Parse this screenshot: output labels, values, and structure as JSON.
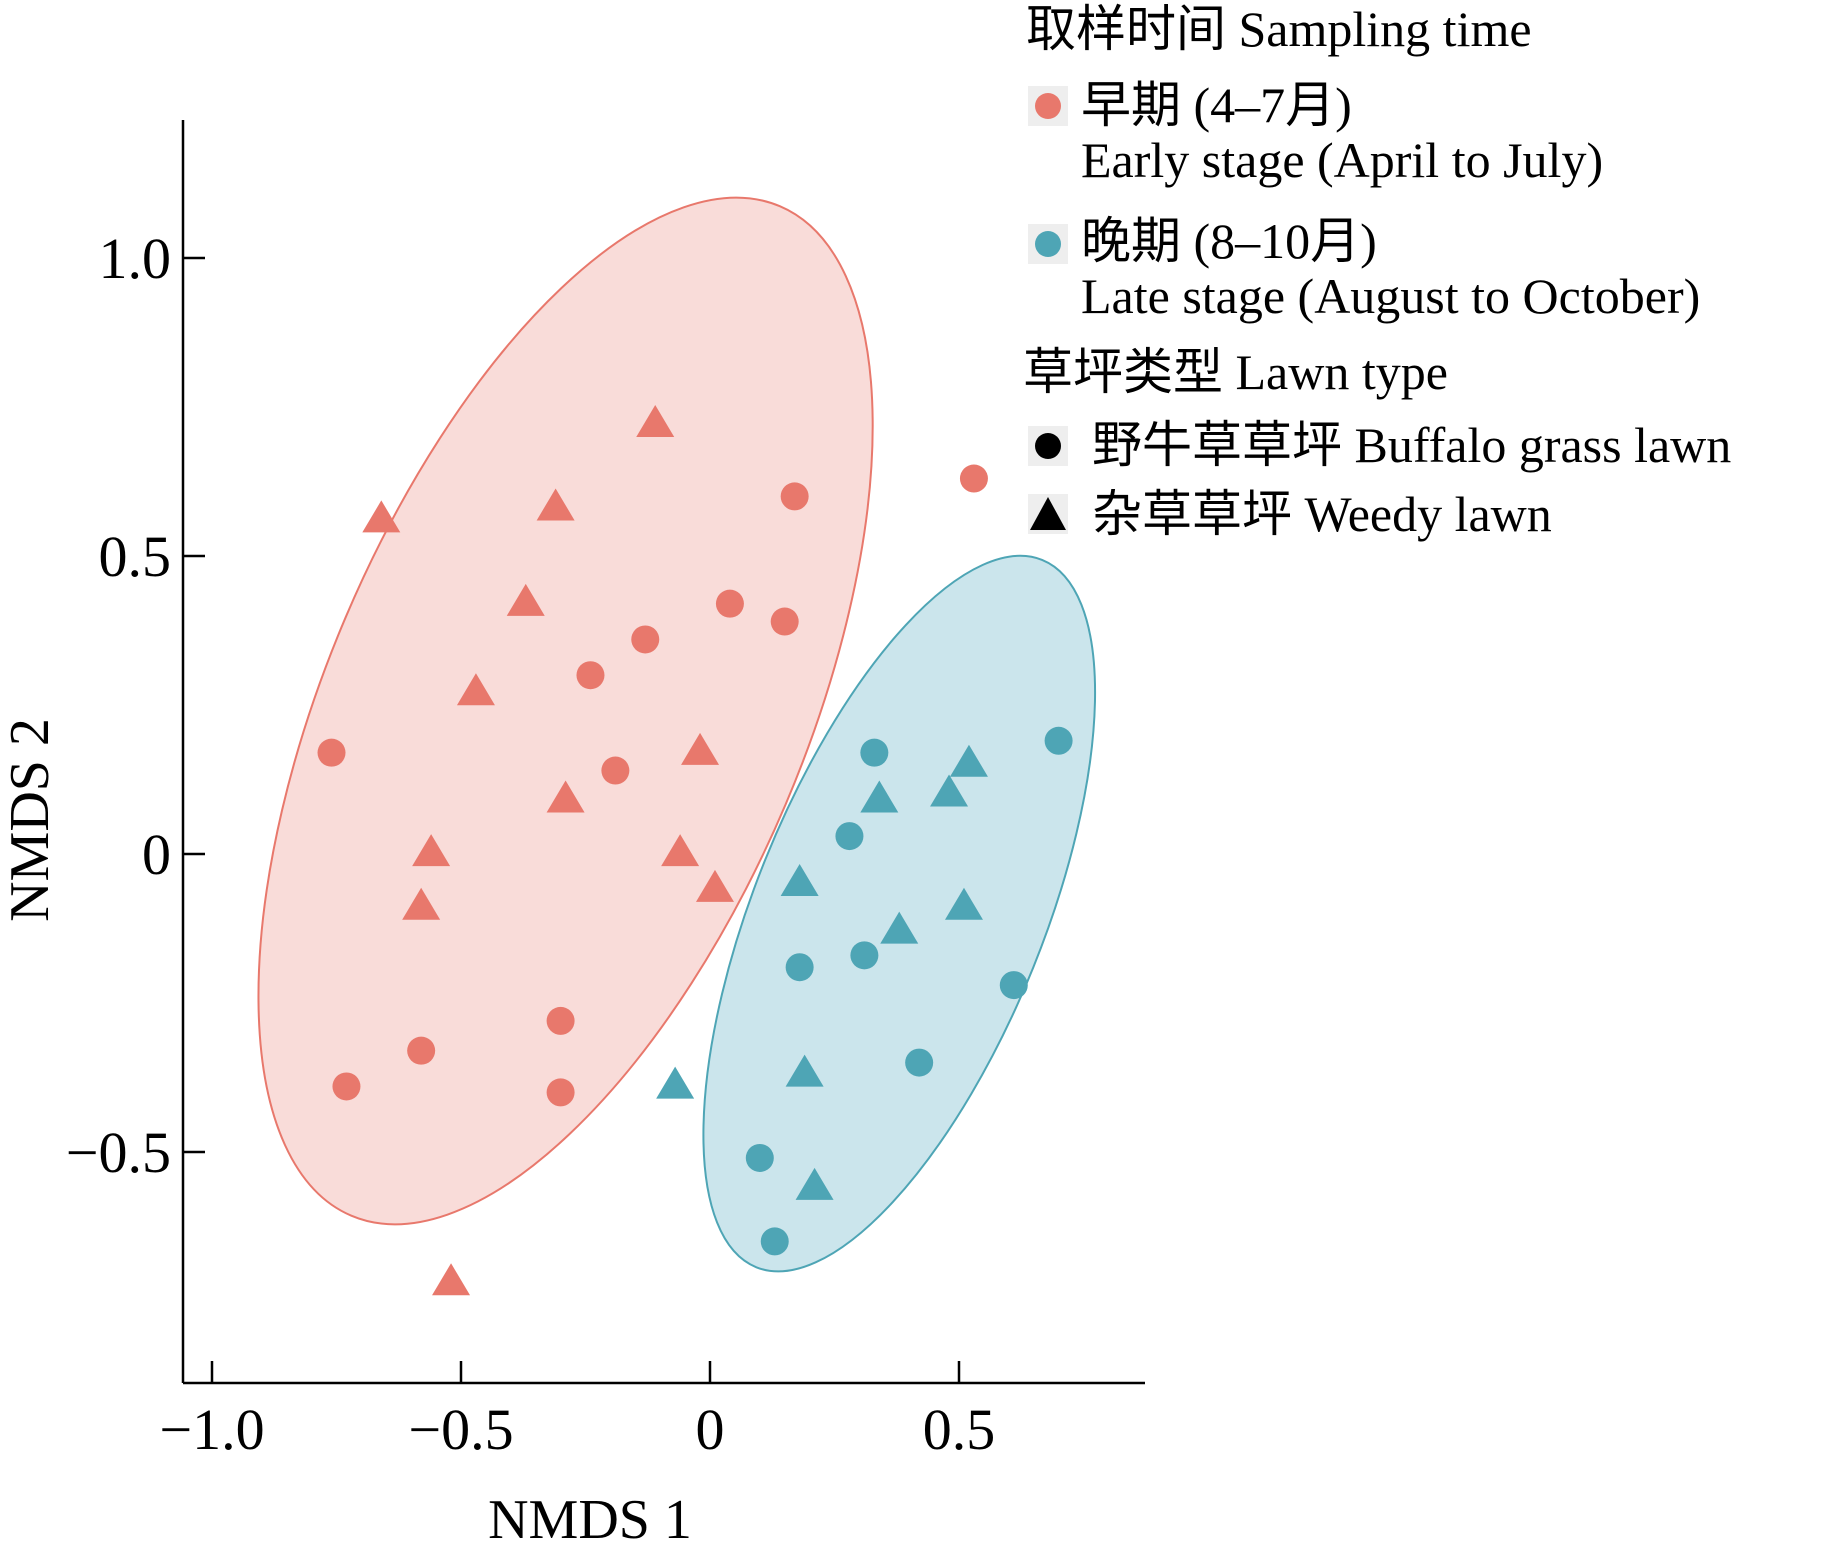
{
  "chart_data": {
    "type": "scatter",
    "xlabel": "NMDS 1",
    "ylabel": "NMDS 2",
    "xlim": [
      -1.05,
      0.87
    ],
    "ylim": [
      -0.9,
      1.23
    ],
    "x_ticks": [
      {
        "value": -1.0,
        "label": "−1.0"
      },
      {
        "value": -0.5,
        "label": "−0.5"
      },
      {
        "value": 0,
        "label": "0"
      },
      {
        "value": 0.5,
        "label": "0.5"
      }
    ],
    "y_ticks": [
      {
        "value": 1.0,
        "label": "1.0"
      },
      {
        "value": 0.5,
        "label": "0.5"
      },
      {
        "value": 0,
        "label": "0"
      },
      {
        "value": -0.5,
        "label": "−0.5"
      }
    ],
    "grid": false,
    "legend": {
      "position": "top-right",
      "sampling_title": "取样时间 Sampling time",
      "early_line1": "早期 (4–7月)",
      "early_line2": "Early stage (April to July)",
      "late_line1": "晚期 (8–10月)",
      "late_line2": "Late stage (August to October)",
      "lawn_title": "草坪类型 Lawn type",
      "buffalo_label": "野牛草草坪 Buffalo grass lawn",
      "weedy_label": "杂草草坪 Weedy lawn"
    },
    "colors": {
      "early": "#e8786c",
      "late": "#4ea5b5",
      "early_fill": "#f5c5c0",
      "late_fill": "#a8d4df",
      "legend_marker": "#000000"
    },
    "ellipses": [
      {
        "group": "early",
        "cx": -0.29,
        "cy": 0.24,
        "rx": 0.48,
        "ry": 0.92,
        "angle_deg": 23
      },
      {
        "group": "late",
        "cx": 0.38,
        "cy": -0.1,
        "rx": 0.29,
        "ry": 0.64,
        "angle_deg": 22
      }
    ],
    "series": [
      {
        "group": "early",
        "shape": "circle",
        "points": [
          [
            0.17,
            0.6
          ],
          [
            0.53,
            0.63
          ],
          [
            0.04,
            0.42
          ],
          [
            0.15,
            0.39
          ],
          [
            -0.13,
            0.36
          ],
          [
            -0.24,
            0.3
          ],
          [
            -0.76,
            0.17
          ],
          [
            -0.19,
            0.14
          ],
          [
            -0.3,
            -0.28
          ],
          [
            -0.58,
            -0.33
          ],
          [
            -0.73,
            -0.39
          ],
          [
            -0.3,
            -0.4
          ]
        ]
      },
      {
        "group": "early",
        "shape": "triangle",
        "points": [
          [
            -0.11,
            0.72
          ],
          [
            -0.66,
            0.56
          ],
          [
            -0.31,
            0.58
          ],
          [
            -0.37,
            0.42
          ],
          [
            -0.47,
            0.27
          ],
          [
            -0.02,
            0.17
          ],
          [
            -0.29,
            0.09
          ],
          [
            -0.56,
            0.0
          ],
          [
            -0.58,
            -0.09
          ],
          [
            -0.06,
            0.0
          ],
          [
            0.01,
            -0.06
          ],
          [
            -0.52,
            -0.72
          ]
        ]
      },
      {
        "group": "late",
        "shape": "circle",
        "points": [
          [
            0.7,
            0.19
          ],
          [
            0.33,
            0.17
          ],
          [
            0.28,
            0.03
          ],
          [
            0.18,
            -0.19
          ],
          [
            0.31,
            -0.17
          ],
          [
            0.61,
            -0.22
          ],
          [
            0.42,
            -0.35
          ],
          [
            0.1,
            -0.51
          ],
          [
            0.13,
            -0.65
          ]
        ]
      },
      {
        "group": "late",
        "shape": "triangle",
        "points": [
          [
            0.52,
            0.15
          ],
          [
            0.34,
            0.09
          ],
          [
            0.48,
            0.1
          ],
          [
            0.18,
            -0.05
          ],
          [
            0.51,
            -0.09
          ],
          [
            0.38,
            -0.13
          ],
          [
            0.19,
            -0.37
          ],
          [
            -0.07,
            -0.39
          ],
          [
            0.21,
            -0.56
          ]
        ]
      }
    ]
  }
}
